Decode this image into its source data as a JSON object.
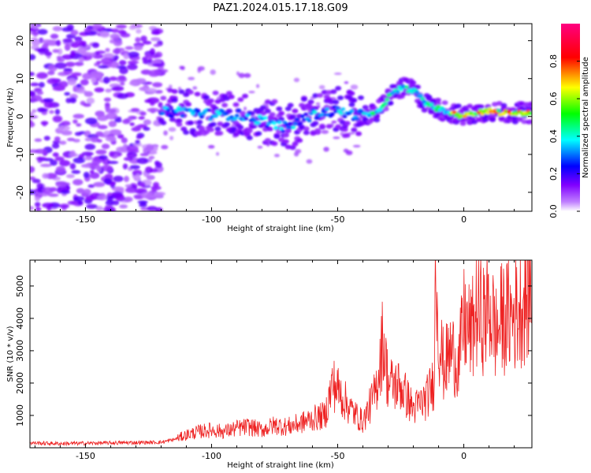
{
  "title": "PAZ1.2024.015.17.18.G09",
  "chart_data": [
    {
      "type": "heatmap",
      "xlabel": "Height of straight line (km)",
      "ylabel": "Frequency (Hz)",
      "xlim": [
        -172,
        27
      ],
      "ylim": [
        -25,
        24.5
      ],
      "x_ticks": [
        -150,
        -100,
        -50,
        0
      ],
      "x_tick_labels": [
        "-150",
        "-100",
        "-50",
        "0"
      ],
      "y_ticks": [
        -20,
        -10,
        0,
        10,
        20
      ],
      "y_tick_labels": [
        "-20",
        "-10",
        "0",
        "10",
        "20"
      ],
      "colorbar": {
        "label": "Normalized spectral amplitude",
        "range": [
          0,
          1
        ],
        "ticks": [
          0.0,
          0.2,
          0.4,
          0.6,
          0.8
        ],
        "tick_labels": [
          "0.0",
          "0.2",
          "0.4",
          "0.6",
          "0.8"
        ],
        "colormap": [
          "#ffffff",
          "#8000ff",
          "#0000ff",
          "#00ffff",
          "#00ff00",
          "#ffff00",
          "#ff0000",
          "#ff0080"
        ]
      },
      "ridge": [
        {
          "x": -120,
          "f": 1.0
        },
        {
          "x": -110,
          "f": 1.5
        },
        {
          "x": -100,
          "f": 0.5
        },
        {
          "x": -90,
          "f": 0.5
        },
        {
          "x": -80,
          "f": -1.0
        },
        {
          "x": -70,
          "f": -3.0
        },
        {
          "x": -60,
          "f": 0.5
        },
        {
          "x": -50,
          "f": 1.5
        },
        {
          "x": -45,
          "f": 0.5
        },
        {
          "x": -40,
          "f": 0.5
        },
        {
          "x": -35,
          "f": 0.5
        },
        {
          "x": -30,
          "f": 5.0
        },
        {
          "x": -25,
          "f": 7.5
        },
        {
          "x": -20,
          "f": 7.0
        },
        {
          "x": -15,
          "f": 3.5
        },
        {
          "x": -10,
          "f": 2.0
        },
        {
          "x": -5,
          "f": 1.0
        },
        {
          "x": 0,
          "f": 0.0
        },
        {
          "x": 5,
          "f": 1.0
        },
        {
          "x": 10,
          "f": 1.5
        },
        {
          "x": 15,
          "f": 1.0
        },
        {
          "x": 20,
          "f": 1.0
        },
        {
          "x": 27,
          "f": 1.0
        }
      ],
      "noise_region": {
        "x_start": -172,
        "x_end": -120
      }
    },
    {
      "type": "line",
      "xlabel": "Height of straight line (km)",
      "ylabel": "SNR (10 * v/v)",
      "xlim": [
        -172,
        27
      ],
      "ylim": [
        0,
        5800
      ],
      "x_ticks": [
        -150,
        -100,
        -50,
        0
      ],
      "x_tick_labels": [
        "-150",
        "-100",
        "-50",
        "0"
      ],
      "y_ticks": [
        1000,
        2000,
        3000,
        4000,
        5000
      ],
      "y_tick_labels": [
        "1000",
        "2000",
        "3000",
        "4000",
        "5000"
      ],
      "line_color": "#ee2222",
      "series": [
        {
          "x": [
            -172,
            -160,
            -150,
            -140,
            -130,
            -120,
            -115,
            -110,
            -105,
            -100,
            -95,
            -90,
            -85,
            -80,
            -75,
            -70,
            -65,
            -60,
            -55,
            -52,
            -50,
            -45,
            -40,
            -35,
            -32,
            -30,
            -25,
            -20,
            -15,
            -12,
            -11,
            -10,
            -8,
            -5,
            -2,
            0,
            3,
            5,
            8,
            10,
            13,
            15,
            20,
            25,
            27
          ],
          "y": [
            150,
            130,
            140,
            150,
            160,
            170,
            250,
            400,
            500,
            550,
            500,
            600,
            650,
            550,
            700,
            650,
            750,
            900,
            1000,
            2000,
            1800,
            1200,
            800,
            1700,
            3400,
            2000,
            1900,
            1200,
            1500,
            2000,
            5800,
            3500,
            2500,
            3000,
            2600,
            3900,
            3500,
            4200,
            4000,
            4400,
            3500,
            4000,
            4100,
            4700,
            5100
          ]
        }
      ]
    }
  ]
}
